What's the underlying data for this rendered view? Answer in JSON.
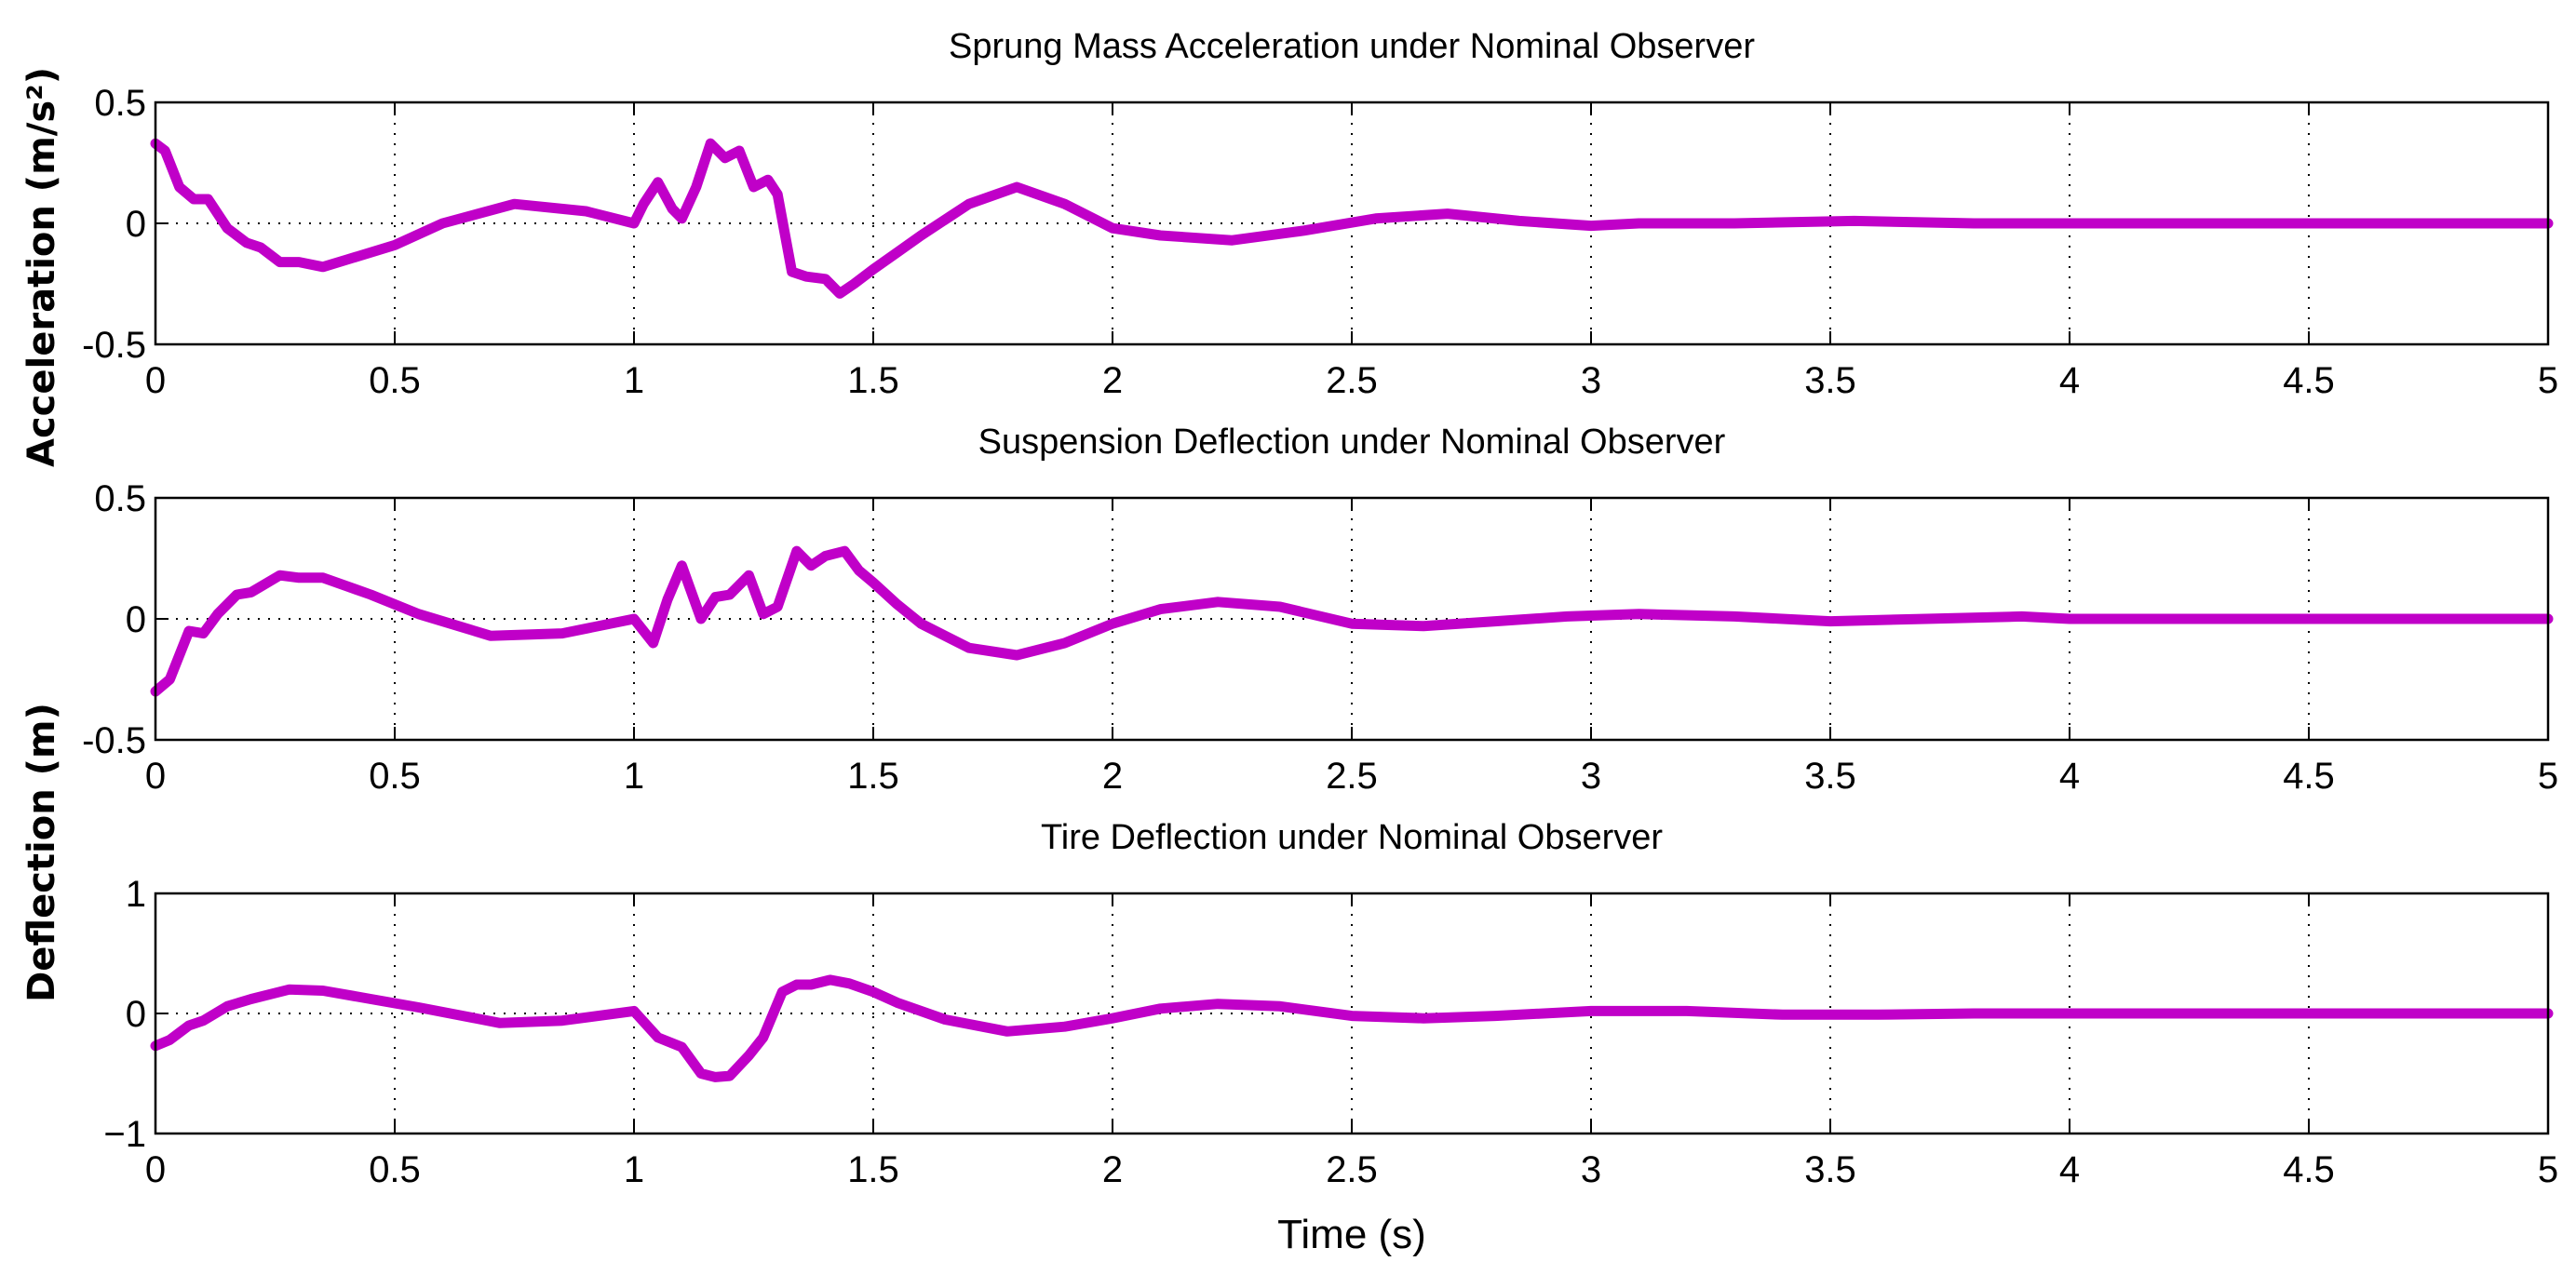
{
  "figure": {
    "xlabel": "Time (s)",
    "ylabel_shared_top": "Acceleration (m/s²)",
    "ylabel_shared_bottom": "Deflection (m)",
    "line_color": "#c000c8",
    "grid_color": "#000000"
  },
  "chart_data": [
    {
      "type": "line",
      "title": "Sprung Mass Acceleration under Nominal Observer",
      "xlabel": "",
      "xlim": [
        0,
        5
      ],
      "ylim": [
        -0.5,
        0.5
      ],
      "x_ticks": [
        "0",
        "0.5",
        "1",
        "1.5",
        "2",
        "2.5",
        "3",
        "3.5",
        "4",
        "4.5",
        "5"
      ],
      "y_ticks": [
        "-0.5",
        "0",
        "0.5"
      ],
      "y_tick_values": [
        -0.5,
        0,
        0.5
      ],
      "grid": true,
      "series": [
        {
          "name": "sprung mass acceleration",
          "x": [
            0,
            0.02,
            0.05,
            0.08,
            0.11,
            0.15,
            0.19,
            0.22,
            0.26,
            0.3,
            0.35,
            0.4,
            0.5,
            0.6,
            0.75,
            0.9,
            1.0,
            1.02,
            1.05,
            1.08,
            1.1,
            1.13,
            1.16,
            1.19,
            1.22,
            1.25,
            1.28,
            1.3,
            1.33,
            1.36,
            1.4,
            1.43,
            1.46,
            1.5,
            1.55,
            1.6,
            1.7,
            1.8,
            1.9,
            2.0,
            2.1,
            2.25,
            2.4,
            2.55,
            2.7,
            2.85,
            3.0,
            3.1,
            3.3,
            3.55,
            3.8,
            4.0,
            4.5,
            5.0
          ],
          "y": [
            0.33,
            0.3,
            0.15,
            0.1,
            0.1,
            -0.02,
            -0.08,
            -0.1,
            -0.16,
            -0.16,
            -0.18,
            -0.15,
            -0.09,
            0.0,
            0.08,
            0.05,
            0.0,
            0.08,
            0.17,
            0.06,
            0.02,
            0.15,
            0.33,
            0.27,
            0.3,
            0.15,
            0.18,
            0.12,
            -0.2,
            -0.22,
            -0.23,
            -0.29,
            -0.25,
            -0.19,
            -0.12,
            -0.05,
            0.08,
            0.15,
            0.08,
            -0.02,
            -0.05,
            -0.07,
            -0.03,
            0.02,
            0.04,
            0.01,
            -0.01,
            0.0,
            0.0,
            0.01,
            0.0,
            0.0,
            0.0,
            0.0
          ]
        }
      ]
    },
    {
      "type": "line",
      "title": "Suspension Deflection under Nominal Observer",
      "xlabel": "",
      "xlim": [
        0,
        5
      ],
      "ylim": [
        -0.5,
        0.5
      ],
      "x_ticks": [
        "0",
        "0.5",
        "1",
        "1.5",
        "2",
        "2.5",
        "3",
        "3.5",
        "4",
        "4.5",
        "5"
      ],
      "y_ticks": [
        "-0.5",
        "0",
        "0.5"
      ],
      "y_tick_values": [
        -0.5,
        0,
        0.5
      ],
      "grid": true,
      "series": [
        {
          "name": "suspension deflection",
          "x": [
            0,
            0.03,
            0.07,
            0.1,
            0.13,
            0.17,
            0.2,
            0.26,
            0.3,
            0.35,
            0.45,
            0.55,
            0.7,
            0.85,
            1.0,
            1.04,
            1.07,
            1.1,
            1.14,
            1.17,
            1.2,
            1.24,
            1.27,
            1.3,
            1.34,
            1.37,
            1.4,
            1.44,
            1.47,
            1.5,
            1.55,
            1.6,
            1.7,
            1.8,
            1.9,
            2.0,
            2.1,
            2.22,
            2.35,
            2.5,
            2.65,
            2.8,
            2.95,
            3.1,
            3.3,
            3.5,
            3.7,
            3.9,
            4.0,
            4.5,
            5.0
          ],
          "y": [
            -0.3,
            -0.25,
            -0.05,
            -0.06,
            0.02,
            0.1,
            0.11,
            0.18,
            0.17,
            0.17,
            0.1,
            0.02,
            -0.07,
            -0.06,
            0.0,
            -0.1,
            0.08,
            0.22,
            0.0,
            0.09,
            0.1,
            0.18,
            0.02,
            0.05,
            0.28,
            0.22,
            0.26,
            0.28,
            0.2,
            0.15,
            0.06,
            -0.02,
            -0.12,
            -0.15,
            -0.1,
            -0.02,
            0.04,
            0.07,
            0.05,
            -0.02,
            -0.03,
            -0.01,
            0.01,
            0.02,
            0.01,
            -0.01,
            0.0,
            0.01,
            0.0,
            0.0,
            0.0
          ]
        }
      ]
    },
    {
      "type": "line",
      "title": "Tire Deflection under Nominal Observer",
      "xlabel": "Time (s)",
      "xlim": [
        0,
        5
      ],
      "ylim": [
        -1,
        1
      ],
      "x_ticks": [
        "0",
        "0.5",
        "1",
        "1.5",
        "2",
        "2.5",
        "3",
        "3.5",
        "4",
        "4.5",
        "5"
      ],
      "y_ticks": [
        "−1",
        "0",
        "1"
      ],
      "y_tick_values": [
        -1,
        0,
        1
      ],
      "grid": true,
      "series": [
        {
          "name": "tire deflection",
          "x": [
            0,
            0.03,
            0.07,
            0.1,
            0.15,
            0.2,
            0.28,
            0.35,
            0.45,
            0.55,
            0.72,
            0.85,
            1.0,
            1.05,
            1.1,
            1.14,
            1.17,
            1.2,
            1.24,
            1.27,
            1.31,
            1.34,
            1.37,
            1.41,
            1.45,
            1.5,
            1.55,
            1.65,
            1.78,
            1.9,
            2.0,
            2.1,
            2.22,
            2.35,
            2.5,
            2.65,
            2.8,
            3.0,
            3.2,
            3.4,
            3.6,
            3.8,
            4.0,
            4.5,
            5.0
          ],
          "y": [
            -0.27,
            -0.22,
            -0.1,
            -0.06,
            0.06,
            0.12,
            0.2,
            0.19,
            0.12,
            0.05,
            -0.08,
            -0.06,
            0.02,
            -0.2,
            -0.28,
            -0.5,
            -0.53,
            -0.52,
            -0.35,
            -0.2,
            0.18,
            0.24,
            0.24,
            0.28,
            0.25,
            0.18,
            0.09,
            -0.05,
            -0.15,
            -0.11,
            -0.04,
            0.04,
            0.08,
            0.06,
            -0.02,
            -0.04,
            -0.02,
            0.02,
            0.02,
            -0.01,
            -0.01,
            0.0,
            0.0,
            0.0,
            0.0
          ]
        }
      ]
    }
  ]
}
